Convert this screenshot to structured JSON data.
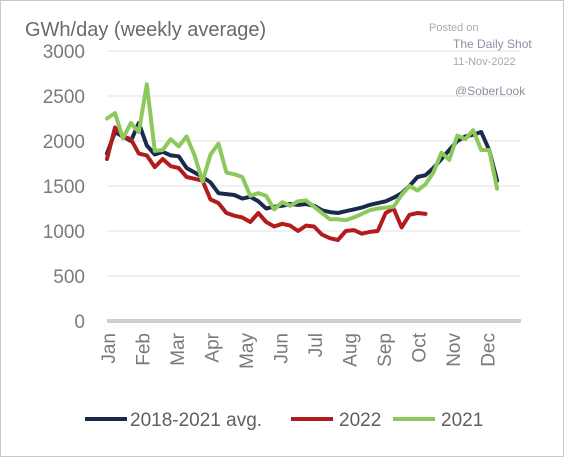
{
  "chart_data": {
    "type": "line",
    "title": "",
    "ylabel": "GWh/day (weekly average)",
    "xlabel": "",
    "ylim": [
      0,
      3000
    ],
    "yticks": [
      0,
      500,
      1000,
      1500,
      2000,
      2500,
      3000
    ],
    "x_tick_labels": [
      "Jan",
      "Feb",
      "Mar",
      "Apr",
      "May",
      "Jun",
      "Jul",
      "Aug",
      "Sep",
      "Oct",
      "Nov",
      "Dec"
    ],
    "x_range_weeks": [
      1,
      53
    ],
    "grid": "horizontal",
    "legend_position": "bottom",
    "series": [
      {
        "name": "2018-2021 avg.",
        "color": "#1a2a4a",
        "values": [
          1860,
          2100,
          2050,
          2000,
          2200,
          1950,
          1850,
          1880,
          1840,
          1830,
          1700,
          1650,
          1600,
          1540,
          1420,
          1410,
          1400,
          1360,
          1380,
          1330,
          1250,
          1270,
          1280,
          1300,
          1290,
          1300,
          1280,
          1230,
          1210,
          1200,
          1220,
          1240,
          1260,
          1290,
          1310,
          1330,
          1370,
          1420,
          1500,
          1600,
          1620,
          1700,
          1800,
          1900,
          2000,
          2050,
          2070,
          2100,
          1900,
          1560
        ]
      },
      {
        "name": "2022",
        "color": "#b31c1c",
        "values": [
          1800,
          2150,
          2050,
          2020,
          1860,
          1840,
          1710,
          1800,
          1720,
          1700,
          1600,
          1580,
          1560,
          1350,
          1310,
          1200,
          1170,
          1150,
          1100,
          1200,
          1100,
          1050,
          1080,
          1060,
          1000,
          1060,
          1050,
          960,
          920,
          900,
          1000,
          1010,
          970,
          990,
          1000,
          1200,
          1250,
          1040,
          1180,
          1200,
          1190
        ]
      },
      {
        "name": "2021",
        "color": "#8dc85c",
        "values": [
          2250,
          2310,
          2030,
          2200,
          2100,
          2630,
          1890,
          1900,
          2020,
          1940,
          2050,
          1840,
          1550,
          1850,
          1970,
          1650,
          1630,
          1600,
          1390,
          1420,
          1390,
          1240,
          1320,
          1280,
          1330,
          1340,
          1270,
          1200,
          1130,
          1130,
          1120,
          1150,
          1190,
          1230,
          1250,
          1260,
          1270,
          1400,
          1500,
          1450,
          1520,
          1650,
          1870,
          1790,
          2060,
          2020,
          2120,
          1900,
          1900,
          1470
        ]
      }
    ]
  },
  "watermark": {
    "posted_on": "Posted on",
    "source": "The Daily Shot",
    "date": "11-Nov-2022",
    "handle": "@SoberLook"
  }
}
